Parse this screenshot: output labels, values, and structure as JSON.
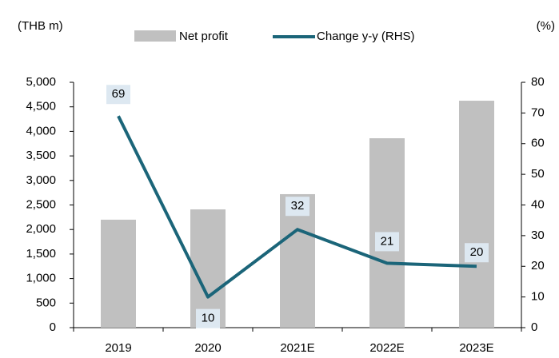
{
  "chart_data": {
    "type": "bar_line",
    "left_axis_label": "(THB m)",
    "right_axis_label": "(%)",
    "categories": [
      "2019",
      "2020",
      "2021E",
      "2022E",
      "2023E"
    ],
    "series": [
      {
        "name": "Net profit",
        "type": "bar",
        "color": "#c0c0c0",
        "values": [
          2200,
          2410,
          2720,
          3860,
          4625
        ]
      },
      {
        "name": "Change y-y (RHS)",
        "type": "line",
        "axis": "y2",
        "color": "#1b6579",
        "values": [
          69,
          10,
          32,
          21,
          20
        ]
      }
    ],
    "ylim": [
      0,
      5000
    ],
    "yticks": [
      0,
      500,
      {
        "value": 1000,
        "label": "1,000"
      },
      {
        "value": 1500,
        "label": "1,500"
      },
      {
        "value": 2000,
        "label": "2,000"
      },
      {
        "value": 2500,
        "label": "2,500"
      },
      {
        "value": 3000,
        "label": "3,000"
      },
      {
        "value": 3500,
        "label": "3,500"
      },
      {
        "value": 4000,
        "label": "4,000"
      },
      {
        "value": 4500,
        "label": "4,500"
      },
      {
        "value": 5000,
        "label": "5,000"
      }
    ],
    "y2lim": [
      0,
      80
    ],
    "y2ticks": [
      0,
      10,
      20,
      30,
      40,
      50,
      60,
      70,
      80
    ],
    "legend": "top"
  }
}
